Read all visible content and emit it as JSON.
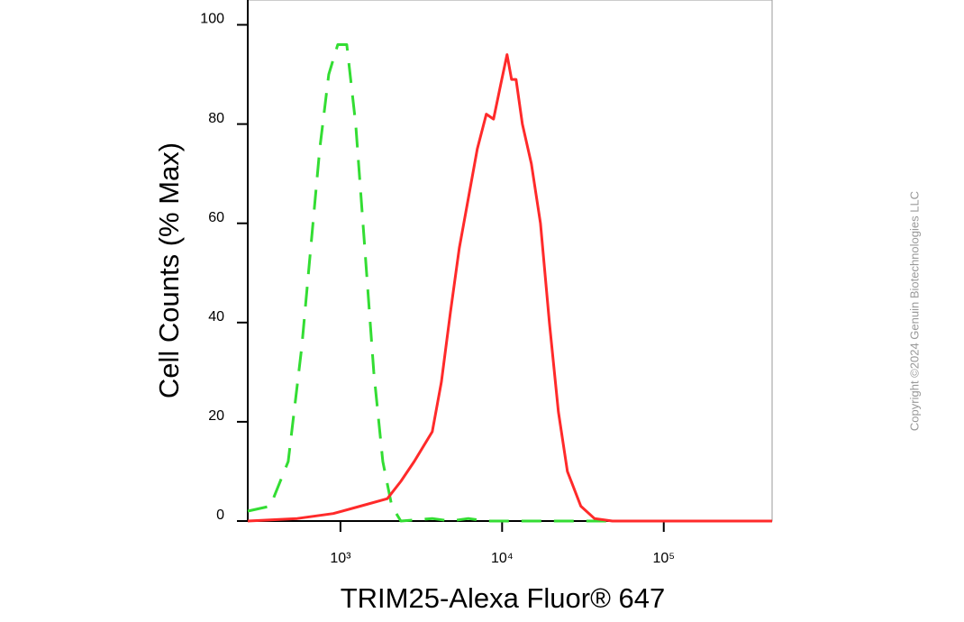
{
  "chart_data": {
    "type": "line",
    "x_label": "TRIM25-Alexa Fluor® 647",
    "y_label": "Cell Counts (% Max)",
    "watermark": "Copyright ©2024 Genuin Biotechnologies LLC",
    "xscale": "log",
    "xlim": [
      267,
      468000
    ],
    "ylim": [
      0,
      105
    ],
    "xticks": [
      {
        "value": 1000,
        "label": "10³"
      },
      {
        "value": 10000,
        "label": "10⁴"
      },
      {
        "value": 100000,
        "label": "10⁵"
      }
    ],
    "yticks": [
      0,
      20,
      40,
      60,
      80,
      100
    ],
    "series": [
      {
        "color": "#33dd33",
        "line_style": "dashed",
        "x": [
          267,
          368,
          475,
          576,
          655,
          744,
          846,
          962,
          1094,
          1243,
          1414,
          1608,
          1827,
          2078,
          2362,
          3700,
          4783,
          6180,
          7990,
          468000
        ],
        "values": [
          2,
          3,
          12,
          35,
          55,
          75,
          90,
          96,
          96,
          80,
          55,
          30,
          12,
          3,
          0,
          0.5,
          0,
          0.5,
          0,
          0
        ]
      },
      {
        "color": "#ff2a2a",
        "line_style": "solid",
        "x": [
          267,
          540,
          903,
          1326,
          1949,
          2362,
          2862,
          3700,
          4207,
          4783,
          5437,
          6180,
          7028,
          7990,
          8853,
          9809,
          10730,
          11440,
          12200,
          13350,
          15180,
          17260,
          19610,
          22300,
          25350,
          30700,
          37240,
          48100,
          468000
        ],
        "values": [
          0,
          0.5,
          1.5,
          3,
          4.5,
          8,
          12,
          18,
          28,
          42,
          55,
          65,
          75,
          82,
          81,
          88,
          94,
          89,
          89,
          80,
          72,
          60,
          40,
          22,
          10,
          3,
          0.5,
          0,
          0
        ]
      }
    ]
  }
}
